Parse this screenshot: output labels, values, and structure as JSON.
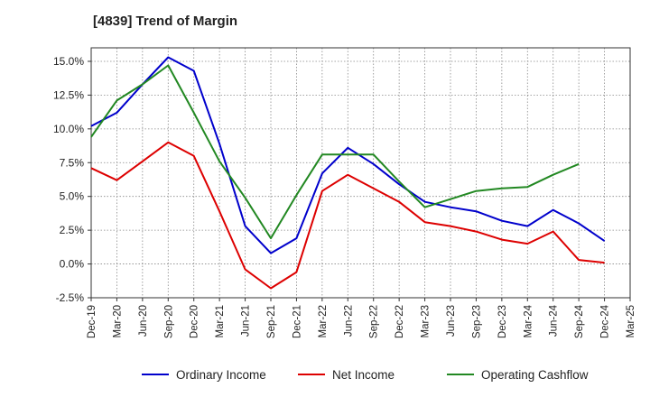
{
  "chart_data": {
    "type": "line",
    "title": "[4839]  Trend of Margin",
    "xlabel": "",
    "ylabel": "",
    "ylim": [
      -2.5,
      16
    ],
    "y_ticks": [
      "-2.5%",
      "0.0%",
      "2.5%",
      "5.0%",
      "7.5%",
      "10.0%",
      "12.5%",
      "15.0%"
    ],
    "y_tick_values": [
      -2.5,
      0,
      2.5,
      5,
      7.5,
      10,
      12.5,
      15
    ],
    "categories": [
      "Dec-19",
      "Mar-20",
      "Jun-20",
      "Sep-20",
      "Dec-20",
      "Mar-21",
      "Jun-21",
      "Sep-21",
      "Dec-21",
      "Mar-22",
      "Jun-22",
      "Sep-22",
      "Dec-22",
      "Mar-23",
      "Jun-23",
      "Sep-23",
      "Dec-23",
      "Mar-24",
      "Jun-24",
      "Sep-24",
      "Dec-24",
      "Mar-25"
    ],
    "grid": true,
    "legend_position": "bottom",
    "series": [
      {
        "name": "Ordinary Income",
        "color": "#0000cc",
        "values": [
          10.2,
          11.2,
          13.3,
          15.3,
          14.3,
          8.9,
          2.8,
          0.8,
          1.9,
          6.7,
          8.6,
          7.4,
          5.9,
          4.6,
          4.2,
          3.9,
          3.2,
          2.8,
          4.0,
          3.0,
          1.7,
          null
        ]
      },
      {
        "name": "Net Income",
        "color": "#dd0000",
        "values": [
          7.1,
          6.2,
          7.6,
          9.0,
          8.0,
          3.9,
          -0.4,
          -1.8,
          -0.6,
          5.4,
          6.6,
          5.6,
          4.6,
          3.1,
          2.8,
          2.4,
          1.8,
          1.5,
          2.4,
          0.3,
          0.1,
          null
        ]
      },
      {
        "name": "Operating Cashflow",
        "color": "#228822",
        "values": [
          9.4,
          12.1,
          13.3,
          14.7,
          11.2,
          7.6,
          4.9,
          1.9,
          5.1,
          8.1,
          8.1,
          8.1,
          6.1,
          4.2,
          4.8,
          5.4,
          5.6,
          5.7,
          6.6,
          7.4,
          null,
          null
        ]
      }
    ]
  }
}
